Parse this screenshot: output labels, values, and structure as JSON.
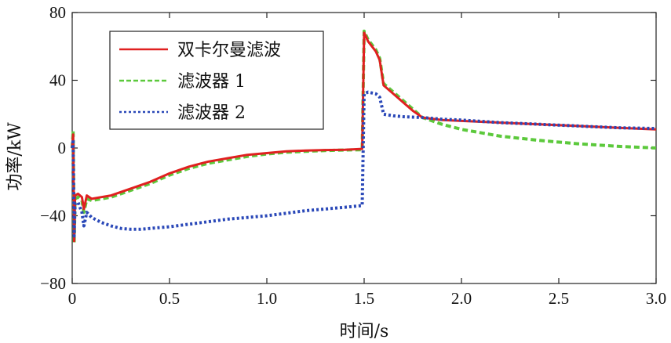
{
  "chart_data": {
    "type": "line",
    "xlabel": "时间/s",
    "ylabel": "功率/kW",
    "xlim": [
      0,
      3.0
    ],
    "ylim": [
      -80,
      80
    ],
    "x_ticks": [
      0,
      0.5,
      1.0,
      1.5,
      2.0,
      2.5,
      3.0
    ],
    "x_tick_labels": [
      "0",
      "0.5",
      "1.0",
      "1.5",
      "2.0",
      "2.5",
      "3.0"
    ],
    "y_ticks": [
      -80,
      -40,
      0,
      40,
      80
    ],
    "y_tick_labels": [
      "−80",
      "−40",
      "0",
      "40",
      "80"
    ],
    "grid": false,
    "legend_position": "top-left",
    "series": [
      {
        "name": "双卡尔曼滤波",
        "color": "#e02020",
        "style": "solid",
        "points": [
          [
            0,
            0
          ],
          [
            0.005,
            8
          ],
          [
            0.01,
            -55
          ],
          [
            0.015,
            -28
          ],
          [
            0.03,
            -27
          ],
          [
            0.05,
            -29
          ],
          [
            0.06,
            -36
          ],
          [
            0.075,
            -28
          ],
          [
            0.1,
            -30
          ],
          [
            0.15,
            -29
          ],
          [
            0.2,
            -28
          ],
          [
            0.3,
            -24
          ],
          [
            0.4,
            -20
          ],
          [
            0.5,
            -15
          ],
          [
            0.6,
            -11
          ],
          [
            0.7,
            -8
          ],
          [
            0.8,
            -6
          ],
          [
            0.9,
            -4
          ],
          [
            1.0,
            -3
          ],
          [
            1.1,
            -2
          ],
          [
            1.2,
            -1.5
          ],
          [
            1.3,
            -1.2
          ],
          [
            1.4,
            -1
          ],
          [
            1.49,
            -0.5
          ],
          [
            1.5,
            68
          ],
          [
            1.52,
            63
          ],
          [
            1.56,
            57
          ],
          [
            1.58,
            52
          ],
          [
            1.6,
            37
          ],
          [
            1.65,
            32
          ],
          [
            1.7,
            27
          ],
          [
            1.75,
            22
          ],
          [
            1.8,
            18
          ],
          [
            1.9,
            16.5
          ],
          [
            2.0,
            16
          ],
          [
            2.2,
            15
          ],
          [
            2.4,
            14
          ],
          [
            2.6,
            13
          ],
          [
            2.8,
            12
          ],
          [
            3.0,
            11
          ]
        ]
      },
      {
        "name": "滤波器 1",
        "color": "#5cc93c",
        "style": "dashed",
        "points": [
          [
            0,
            0
          ],
          [
            0.005,
            10
          ],
          [
            0.01,
            -56
          ],
          [
            0.015,
            -30
          ],
          [
            0.03,
            -29
          ],
          [
            0.05,
            -31
          ],
          [
            0.06,
            -38
          ],
          [
            0.075,
            -30
          ],
          [
            0.1,
            -31
          ],
          [
            0.15,
            -30
          ],
          [
            0.2,
            -29
          ],
          [
            0.3,
            -25
          ],
          [
            0.4,
            -21
          ],
          [
            0.5,
            -16
          ],
          [
            0.6,
            -12
          ],
          [
            0.7,
            -9
          ],
          [
            0.8,
            -7
          ],
          [
            0.9,
            -5
          ],
          [
            1.0,
            -3.5
          ],
          [
            1.1,
            -2.5
          ],
          [
            1.2,
            -2
          ],
          [
            1.3,
            -1.5
          ],
          [
            1.4,
            -1.2
          ],
          [
            1.49,
            -1
          ],
          [
            1.5,
            69
          ],
          [
            1.52,
            64
          ],
          [
            1.56,
            58
          ],
          [
            1.58,
            53
          ],
          [
            1.6,
            38
          ],
          [
            1.65,
            33
          ],
          [
            1.7,
            28
          ],
          [
            1.75,
            23
          ],
          [
            1.8,
            18
          ],
          [
            1.9,
            14
          ],
          [
            2.0,
            11
          ],
          [
            2.2,
            7
          ],
          [
            2.4,
            4.5
          ],
          [
            2.6,
            2.5
          ],
          [
            2.8,
            1
          ],
          [
            3.0,
            0
          ]
        ]
      },
      {
        "name": "滤波器 2",
        "color": "#2a48b8",
        "style": "dotted",
        "points": [
          [
            0,
            0
          ],
          [
            0.005,
            5
          ],
          [
            0.01,
            -52
          ],
          [
            0.015,
            -33
          ],
          [
            0.03,
            -32
          ],
          [
            0.05,
            -38
          ],
          [
            0.06,
            -46
          ],
          [
            0.075,
            -38
          ],
          [
            0.1,
            -41
          ],
          [
            0.15,
            -44
          ],
          [
            0.2,
            -46
          ],
          [
            0.25,
            -47.5
          ],
          [
            0.3,
            -48
          ],
          [
            0.35,
            -48
          ],
          [
            0.4,
            -47.5
          ],
          [
            0.5,
            -46.5
          ],
          [
            0.6,
            -45
          ],
          [
            0.7,
            -43.5
          ],
          [
            0.8,
            -42
          ],
          [
            0.9,
            -41
          ],
          [
            1.0,
            -40
          ],
          [
            1.1,
            -38.5
          ],
          [
            1.2,
            -37
          ],
          [
            1.3,
            -36
          ],
          [
            1.4,
            -35
          ],
          [
            1.49,
            -34
          ],
          [
            1.5,
            32
          ],
          [
            1.52,
            33
          ],
          [
            1.56,
            32
          ],
          [
            1.58,
            30
          ],
          [
            1.6,
            20
          ],
          [
            1.65,
            19
          ],
          [
            1.7,
            18.5
          ],
          [
            1.8,
            18
          ],
          [
            1.9,
            17
          ],
          [
            2.0,
            16.5
          ],
          [
            2.2,
            15
          ],
          [
            2.4,
            14
          ],
          [
            2.6,
            13
          ],
          [
            2.8,
            12
          ],
          [
            3.0,
            11.5
          ]
        ]
      }
    ]
  }
}
